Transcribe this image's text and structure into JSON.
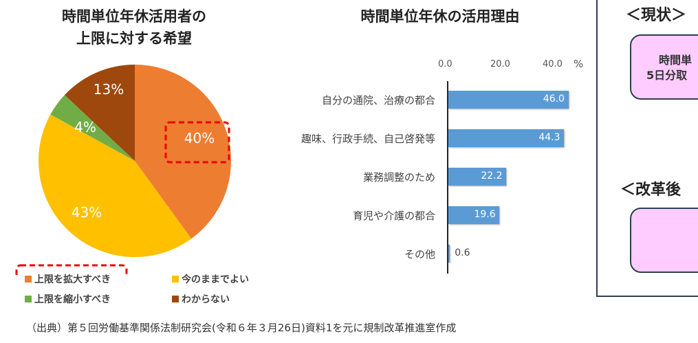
{
  "chart_data": [
    {
      "type": "pie",
      "title": "時間単位年休活用者の\n上限に対する希望",
      "slices": [
        {
          "label": "上限を拡大すべき",
          "value": 40,
          "text": "40%",
          "color": "#ED7D31"
        },
        {
          "label": "今のままでよい",
          "value": 43,
          "text": "43%",
          "color": "#FFC000"
        },
        {
          "label": "上限を縮小すべき",
          "value": 4,
          "text": "4%",
          "color": "#70AD47"
        },
        {
          "label": "わからない",
          "value": 13,
          "text": "13%",
          "color": "#9E480E"
        }
      ],
      "highlight": "上限を拡大すべき",
      "legend": "bottom"
    },
    {
      "type": "bar",
      "orientation": "horizontal",
      "title": "時間単位年休の活用理由",
      "categories": [
        "自分の通院、治療の都合",
        "趣味、行政手続、自己啓発等",
        "業務調整のため",
        "育児や介護の都合",
        "その他"
      ],
      "values": [
        46.0,
        44.3,
        22.2,
        19.6,
        0.6
      ],
      "value_labels": [
        "46.0",
        "44.3",
        "22.2",
        "19.6",
        "0.6"
      ],
      "xticks": [
        "0.0",
        "20.0",
        "40.0"
      ],
      "unit": "%",
      "xlim": [
        0,
        46
      ],
      "color": "#5B9BD5",
      "grid": false
    }
  ],
  "panel": {
    "current_heading": "＜現状＞",
    "current_text_line1": "時間単",
    "current_text_line2": "5日分取",
    "after_heading": "＜改革後"
  },
  "source": "（出典）第５回労働基準関係法制研究会(令和６年３月26日)資料1を元に規制改革推進室作成"
}
